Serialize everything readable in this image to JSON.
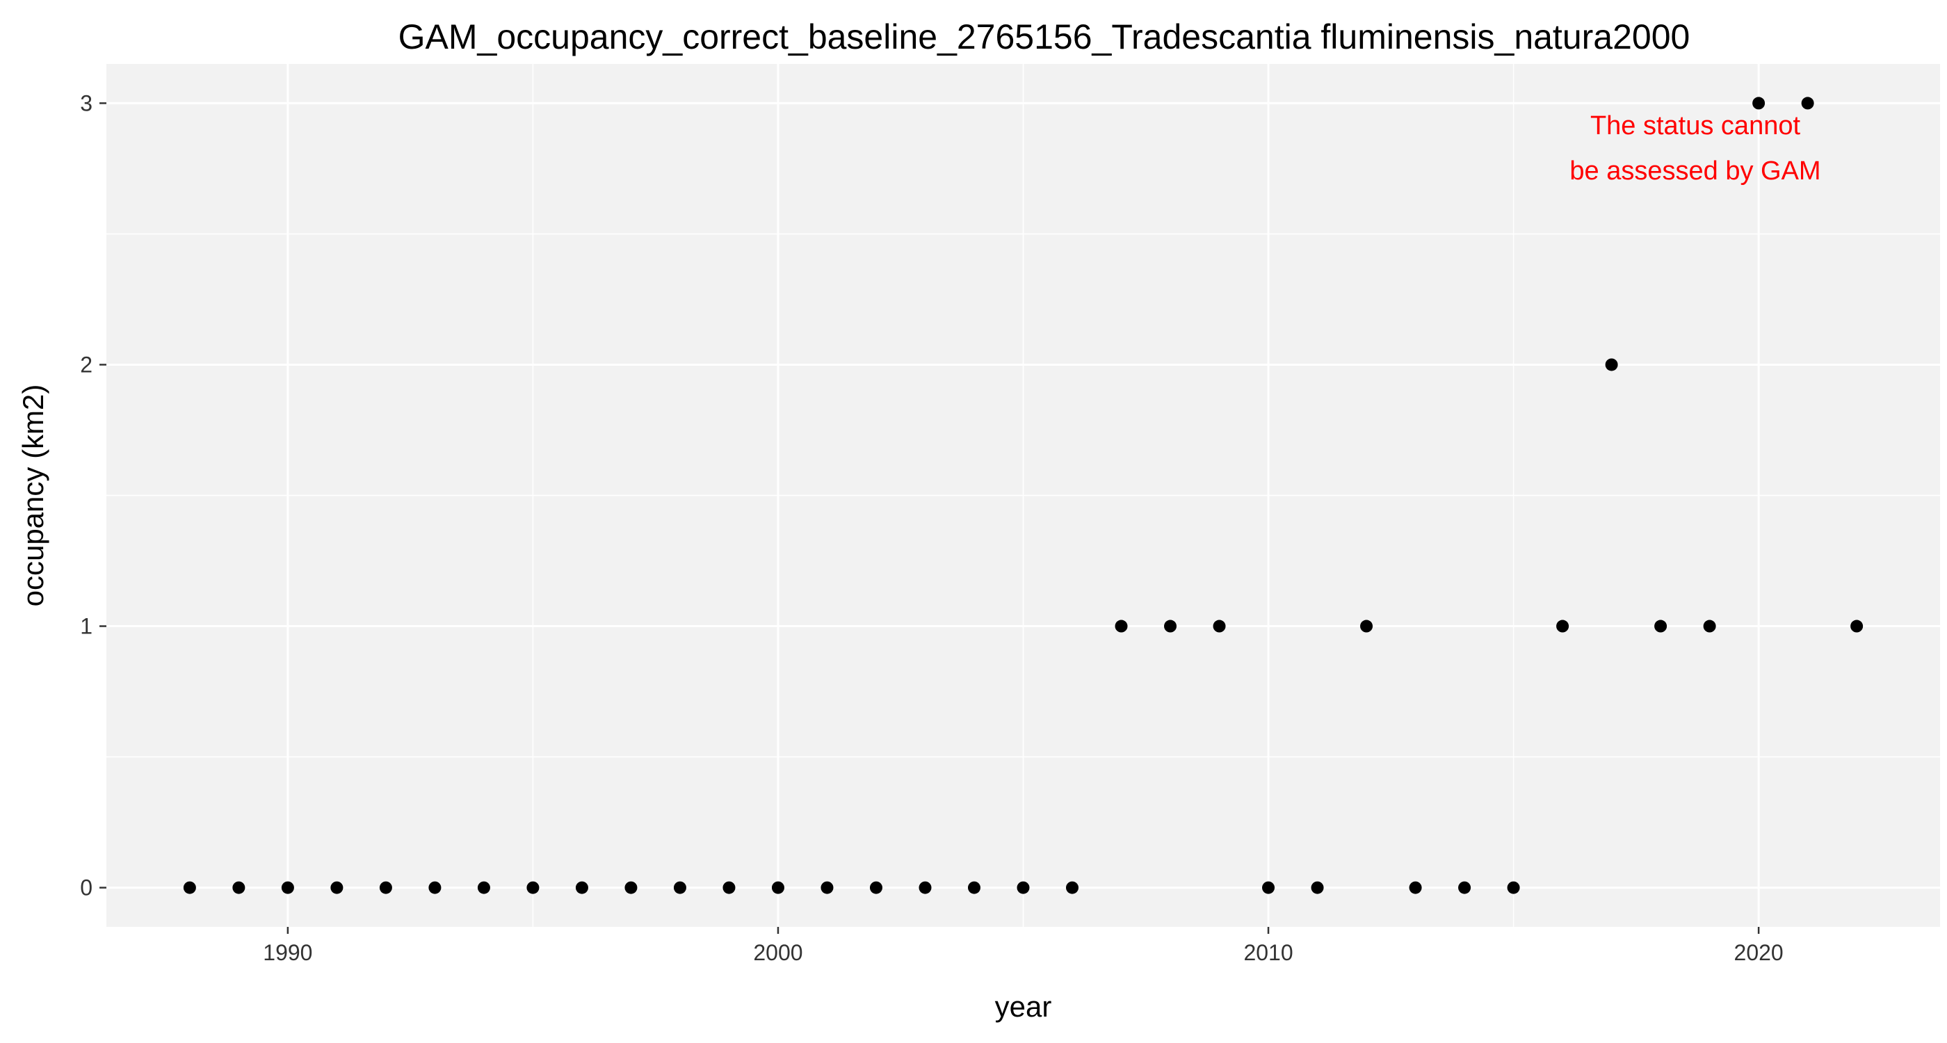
{
  "chart_data": {
    "type": "scatter",
    "title": "GAM_occupancy_correct_baseline_2765156_Tradescantia fluminensis_natura2000",
    "xlabel": "year",
    "ylabel": "occupancy (km2)",
    "xlim": [
      1986.3,
      2023.7
    ],
    "ylim": [
      -0.15,
      3.15
    ],
    "x_ticks": [
      1990,
      2000,
      2010,
      2020
    ],
    "x_tick_labels": [
      "1990",
      "2000",
      "2010",
      "2020"
    ],
    "y_ticks": [
      0,
      1,
      2,
      3
    ],
    "y_tick_labels": [
      "0",
      "1",
      "2",
      "3"
    ],
    "grid": true,
    "series": [
      {
        "x": [
          1988,
          1989,
          1990,
          1991,
          1992,
          1993,
          1994,
          1995,
          1996,
          1997,
          1998,
          1999,
          2000,
          2001,
          2002,
          2003,
          2004,
          2005,
          2006,
          2007,
          2008,
          2009,
          2010,
          2011,
          2012,
          2013,
          2014,
          2015,
          2016,
          2017,
          2018,
          2019,
          2020,
          2021,
          2022
        ],
        "y": [
          0,
          0,
          0,
          0,
          0,
          0,
          0,
          0,
          0,
          0,
          0,
          0,
          0,
          0,
          0,
          0,
          0,
          0,
          0,
          1,
          1,
          1,
          0,
          0,
          1,
          0,
          0,
          0,
          1,
          2,
          1,
          1,
          3,
          3,
          1
        ]
      }
    ],
    "annotation": {
      "lines": [
        "The status cannot",
        "be assessed by GAM"
      ],
      "color": "#ff0000",
      "placement": "top-right"
    },
    "colors": {
      "panel_background": "#f2f2f2",
      "grid": "#ffffff",
      "points": "#000000"
    }
  }
}
